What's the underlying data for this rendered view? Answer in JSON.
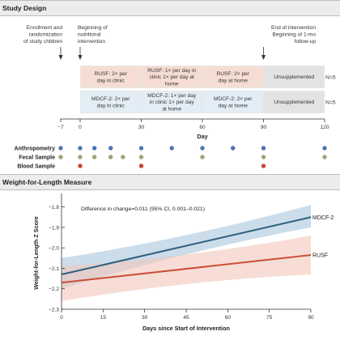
{
  "study_design": {
    "heading": "Study Design",
    "milestones": [
      {
        "day": -7,
        "label": "Enrollment and randomization of study children"
      },
      {
        "day": 0,
        "label": "Beginning of nutritional intervention"
      },
      {
        "day": 90,
        "label": "End of intervention Beginning of 1-mo follow-up"
      }
    ],
    "arms": [
      {
        "n_label": "N=5",
        "segments": [
          {
            "start": 0,
            "end": 30,
            "text": "RUSF: 2× per day in clinic"
          },
          {
            "start": 30,
            "end": 60,
            "text": "RUSF: 1× per day in clinic 1× per day at home"
          },
          {
            "start": 60,
            "end": 90,
            "text": "RUSF: 2× per day at home"
          },
          {
            "start": 90,
            "end": 120,
            "text": "Unsupplemented"
          }
        ]
      },
      {
        "n_label": "N=5",
        "segments": [
          {
            "start": 0,
            "end": 30,
            "text": "MDCF-2: 2× per day in clinic"
          },
          {
            "start": 30,
            "end": 60,
            "text": "MDCF-2: 1× per day in clinic 1× per day at home"
          },
          {
            "start": 60,
            "end": 90,
            "text": "MDCF-2: 2× per day at home"
          },
          {
            "start": 90,
            "end": 120,
            "text": "Unsupplemented"
          }
        ]
      }
    ],
    "axis": {
      "ticks": [
        -7,
        0,
        30,
        60,
        90,
        120
      ],
      "label": "Day"
    },
    "samples": [
      {
        "label": "Anthropometry",
        "color": "#4a74b4",
        "days": [
          -7,
          0,
          7,
          15,
          30,
          45,
          60,
          75,
          90,
          120
        ]
      },
      {
        "label": "Fecal Sample",
        "color": "#9fa377",
        "days": [
          -7,
          0,
          7,
          15,
          21,
          30,
          60,
          90,
          120
        ]
      },
      {
        "label": "Blood Sample",
        "color": "#cc4433",
        "days": [
          0,
          30,
          90
        ]
      }
    ]
  },
  "wfl": {
    "heading": "Weight-for-Length Measure",
    "annotation": "Difference in change=0.011 (95% CI, 0.001–0.021)",
    "chart_data": {
      "type": "line",
      "title": "",
      "xlabel": "Days since Start of Intervention",
      "ylabel": "Weight-for-Length Z Score",
      "xlim": [
        0,
        90
      ],
      "ylim": [
        -2.3,
        -1.75
      ],
      "xticks": [
        0,
        15,
        30,
        45,
        60,
        75,
        90
      ],
      "yticks": [
        -1.8,
        -1.9,
        -2.0,
        -2.1,
        -2.2,
        -2.3
      ],
      "series": [
        {
          "name": "MDCF-2",
          "color": "#2c5f7c",
          "band_color": "#a9c4dc",
          "x": [
            0,
            90
          ],
          "y": [
            -2.13,
            -1.85
          ],
          "ci_low": [
            -2.2,
            -1.9
          ],
          "ci_high": [
            -2.05,
            -1.79
          ]
        },
        {
          "name": "RUSF",
          "color": "#cc4e35",
          "band_color": "#f2c6bb",
          "x": [
            0,
            90
          ],
          "y": [
            -2.17,
            -2.035
          ],
          "ci_low": [
            -2.26,
            -2.13
          ],
          "ci_high": [
            -2.09,
            -1.94
          ]
        }
      ]
    }
  }
}
